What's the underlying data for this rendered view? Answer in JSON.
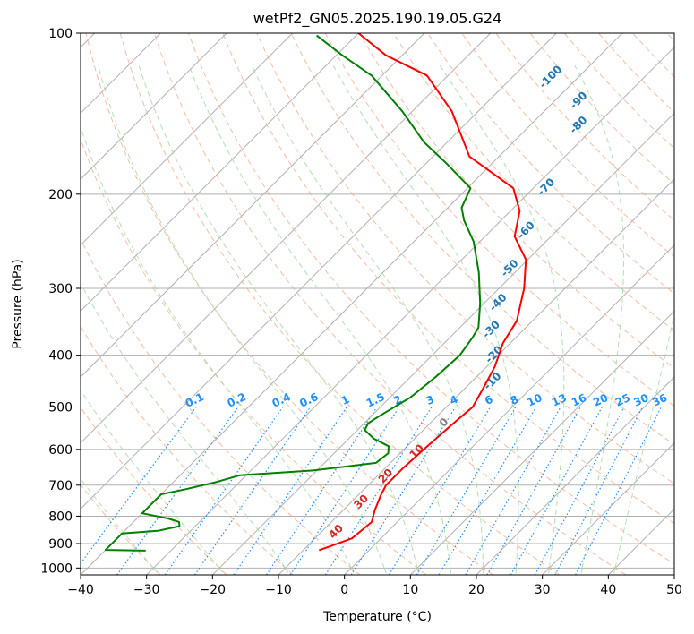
{
  "chart_data": {
    "type": "line",
    "title": "wetPf2_GN05.2025.190.19.05.G24",
    "xlabel": "Temperature (°C)",
    "ylabel": "Pressure (hPa)",
    "xlim": [
      -40,
      50
    ],
    "ylim": [
      1030,
      100
    ],
    "y_scale": "log",
    "x_ticks": [
      -40,
      -30,
      -20,
      -10,
      0,
      10,
      20,
      30,
      40,
      50
    ],
    "x_tick_labels": [
      "−40",
      "−30",
      "−20",
      "−10",
      "0",
      "10",
      "20",
      "30",
      "40",
      "50"
    ],
    "y_ticks": [
      1000,
      900,
      800,
      700,
      600,
      500,
      400,
      300,
      200,
      100
    ],
    "y_tick_labels": [
      "1000",
      "900",
      "800",
      "700",
      "600",
      "500",
      "400",
      "300",
      "200",
      "100"
    ],
    "grid": true,
    "series": [
      {
        "role": "temperature",
        "color": "#ff0000",
        "points": [
          [
            -7.6,
            926
          ],
          [
            -6.5,
            910
          ],
          [
            -4.4,
            880
          ],
          [
            -4.1,
            845
          ],
          [
            -3.9,
            820
          ],
          [
            -5.2,
            780
          ],
          [
            -6.6,
            730
          ],
          [
            -7.3,
            700
          ],
          [
            -7.3,
            650
          ],
          [
            -7.0,
            600
          ],
          [
            -6.5,
            540
          ],
          [
            -6.0,
            500
          ],
          [
            -7.3,
            460
          ],
          [
            -8.8,
            420
          ],
          [
            -11.1,
            380
          ],
          [
            -12.4,
            345
          ],
          [
            -16.2,
            300
          ],
          [
            -20.3,
            265
          ],
          [
            -25.5,
            240
          ],
          [
            -28.6,
            215
          ],
          [
            -33.0,
            195
          ],
          [
            -44.5,
            170
          ],
          [
            -54.0,
            140
          ],
          [
            -63.2,
            120
          ],
          [
            -72.5,
            110
          ],
          [
            -80.0,
            100
          ]
        ]
      },
      {
        "role": "dewpoint",
        "color": "#008000",
        "points": [
          [
            -33.8,
            928
          ],
          [
            -40.0,
            925
          ],
          [
            -40.0,
            862
          ],
          [
            -35.0,
            852
          ],
          [
            -32.4,
            835
          ],
          [
            -33.1,
            820
          ],
          [
            -35.3,
            808
          ],
          [
            -40.0,
            790
          ],
          [
            -40.0,
            728
          ],
          [
            -37.0,
            712
          ],
          [
            -33.4,
            690
          ],
          [
            -31.0,
            671
          ],
          [
            -20.6,
            657
          ],
          [
            -12.2,
            636
          ],
          [
            -11.8,
            610
          ],
          [
            -12.8,
            592
          ],
          [
            -16.2,
            573
          ],
          [
            -18.9,
            552
          ],
          [
            -19.4,
            536
          ],
          [
            -18.8,
            520
          ],
          [
            -16.9,
            480
          ],
          [
            -16.2,
            440
          ],
          [
            -15.8,
            400
          ],
          [
            -16.6,
            370
          ],
          [
            -17.2,
            355
          ],
          [
            -20.6,
            320
          ],
          [
            -25.5,
            280
          ],
          [
            -31.0,
            245
          ],
          [
            -35.6,
            224
          ],
          [
            -37.9,
            212
          ],
          [
            -39.5,
            195
          ],
          [
            -47.0,
            175
          ],
          [
            -53.5,
            160
          ],
          [
            -61.5,
            140
          ],
          [
            -71.6,
            120
          ],
          [
            -79.1,
            110
          ],
          [
            -86.0,
            101
          ]
        ]
      }
    ],
    "mixing_ratio_labels": [
      "0.1",
      "0.2",
      "0.4",
      "0.6",
      "1",
      "1.5",
      "2",
      "3",
      "4",
      "6",
      "8",
      "10",
      "13",
      "16",
      "20",
      "25",
      "30",
      "36"
    ],
    "moist_adiabat_labels": [
      "-100",
      "-90",
      "-80",
      "-70",
      "-60",
      "-50",
      "-40",
      "-30",
      "-20",
      "-10",
      "0",
      "10",
      "20",
      "30",
      "40"
    ],
    "colors": {
      "temperature": "#ff0000",
      "dewpoint": "#008000",
      "isotherm": "#b0b0b0",
      "dry_adiabat": "#f4a582",
      "moist_adiabat": "#a6d9a6",
      "mixing_ratio": "#1e90ff",
      "moist_label": "#1f77b4",
      "warm_label": "#d62728",
      "zero_label": "#808080"
    }
  }
}
